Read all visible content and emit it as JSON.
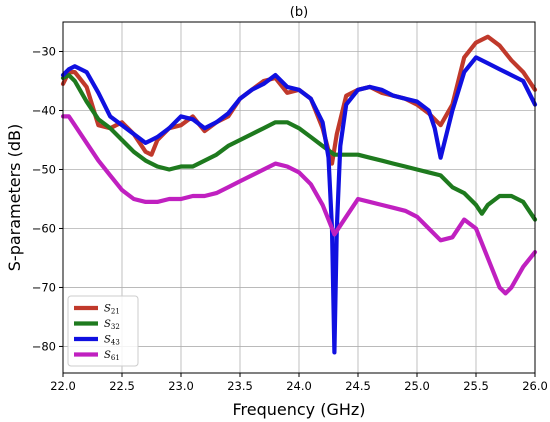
{
  "chart_data": {
    "type": "line",
    "title": "(b)",
    "xlabel": "Frequency (GHz)",
    "ylabel": "S-parameters (dB)",
    "xlim": [
      22.0,
      26.0
    ],
    "ylim": [
      -84.5,
      -25.0
    ],
    "xticks": [
      22.0,
      22.5,
      23.0,
      23.5,
      24.0,
      24.5,
      25.0,
      25.5,
      26.0
    ],
    "xtick_labels": [
      "22.0",
      "22.5",
      "23.0",
      "23.5",
      "24.0",
      "24.5",
      "25.0",
      "25.5",
      "26.0"
    ],
    "yticks": [
      -80,
      -70,
      -60,
      -50,
      -40,
      -30
    ],
    "ytick_labels": [
      "−80",
      "−70",
      "−60",
      "−50",
      "−40",
      "−30"
    ],
    "grid": true,
    "legend_position": "bottom-left",
    "series": [
      {
        "name": "S21",
        "label_main": "S",
        "label_sub": "21",
        "color": "#c0392b",
        "x": [
          22.0,
          22.05,
          22.1,
          22.2,
          22.3,
          22.4,
          22.5,
          22.6,
          22.7,
          22.75,
          22.8,
          22.9,
          23.0,
          23.1,
          23.2,
          23.3,
          23.4,
          23.5,
          23.6,
          23.7,
          23.8,
          23.9,
          24.0,
          24.1,
          24.2,
          24.28,
          24.32,
          24.4,
          24.5,
          24.6,
          24.7,
          24.8,
          24.9,
          25.0,
          25.1,
          25.2,
          25.3,
          25.4,
          25.5,
          25.6,
          25.7,
          25.8,
          25.9,
          26.0
        ],
        "y": [
          -35.5,
          -33.5,
          -33.5,
          -36.0,
          -42.5,
          -43.0,
          -42.0,
          -44.0,
          -47.0,
          -47.5,
          -45.0,
          -43.0,
          -42.5,
          -41.0,
          -43.5,
          -42.0,
          -41.0,
          -38.0,
          -36.5,
          -35.0,
          -34.5,
          -37.0,
          -36.5,
          -38.0,
          -43.0,
          -49.0,
          -44.0,
          -37.5,
          -36.5,
          -36.0,
          -37.0,
          -37.5,
          -38.0,
          -39.0,
          -40.5,
          -42.5,
          -39.0,
          -31.0,
          -28.5,
          -27.5,
          -29.0,
          -31.5,
          -33.5,
          -36.5
        ]
      },
      {
        "name": "S32",
        "label_main": "S",
        "label_sub": "32",
        "color": "#1e7a1e",
        "x": [
          22.0,
          22.05,
          22.1,
          22.2,
          22.3,
          22.4,
          22.5,
          22.6,
          22.7,
          22.8,
          22.9,
          23.0,
          23.1,
          23.2,
          23.3,
          23.4,
          23.5,
          23.6,
          23.7,
          23.8,
          23.9,
          24.0,
          24.1,
          24.2,
          24.3,
          24.4,
          24.5,
          24.6,
          24.7,
          24.8,
          24.9,
          25.0,
          25.1,
          25.2,
          25.3,
          25.4,
          25.5,
          25.55,
          25.6,
          25.7,
          25.8,
          25.9,
          26.0
        ],
        "y": [
          -34.5,
          -34.0,
          -35.0,
          -38.5,
          -41.5,
          -43.0,
          -45.0,
          -47.0,
          -48.5,
          -49.5,
          -50.0,
          -49.5,
          -49.5,
          -48.5,
          -47.5,
          -46.0,
          -45.0,
          -44.0,
          -43.0,
          -42.0,
          -42.0,
          -43.0,
          -44.5,
          -46.0,
          -47.5,
          -47.5,
          -47.5,
          -48.0,
          -48.5,
          -49.0,
          -49.5,
          -50.0,
          -50.5,
          -51.0,
          -53.0,
          -54.0,
          -56.0,
          -57.5,
          -56.0,
          -54.5,
          -54.5,
          -55.5,
          -58.5
        ]
      },
      {
        "name": "S43",
        "label_main": "S",
        "label_sub": "43",
        "color": "#1010e0",
        "x": [
          22.0,
          22.05,
          22.1,
          22.2,
          22.3,
          22.4,
          22.5,
          22.6,
          22.7,
          22.75,
          22.8,
          22.9,
          23.0,
          23.1,
          23.2,
          23.3,
          23.4,
          23.5,
          23.6,
          23.7,
          23.8,
          23.9,
          24.0,
          24.1,
          24.2,
          24.25,
          24.28,
          24.3,
          24.32,
          24.35,
          24.4,
          24.5,
          24.6,
          24.7,
          24.8,
          24.9,
          25.0,
          25.1,
          25.15,
          25.2,
          25.25,
          25.3,
          25.4,
          25.5,
          25.6,
          25.7,
          25.8,
          25.9,
          26.0
        ],
        "y": [
          -34.0,
          -33.0,
          -32.5,
          -33.5,
          -37.0,
          -41.0,
          -42.5,
          -44.0,
          -45.5,
          -45.0,
          -44.5,
          -43.0,
          -41.0,
          -41.5,
          -43.0,
          -42.0,
          -40.5,
          -38.0,
          -36.5,
          -35.5,
          -34.0,
          -36.0,
          -36.5,
          -38.0,
          -42.0,
          -48.0,
          -60.0,
          -81.0,
          -60.0,
          -46.0,
          -39.0,
          -36.5,
          -36.0,
          -36.5,
          -37.5,
          -38.0,
          -38.5,
          -40.0,
          -43.0,
          -48.0,
          -44.0,
          -40.0,
          -33.5,
          -31.0,
          -32.0,
          -33.0,
          -34.0,
          -35.0,
          -39.0
        ]
      },
      {
        "name": "S61",
        "label_main": "S",
        "label_sub": "61",
        "color": "#c020c0",
        "x": [
          22.0,
          22.05,
          22.1,
          22.2,
          22.3,
          22.4,
          22.5,
          22.6,
          22.7,
          22.8,
          22.9,
          23.0,
          23.1,
          23.2,
          23.3,
          23.4,
          23.5,
          23.6,
          23.7,
          23.8,
          23.9,
          24.0,
          24.1,
          24.2,
          24.3,
          24.4,
          24.5,
          24.6,
          24.7,
          24.8,
          24.9,
          25.0,
          25.1,
          25.2,
          25.3,
          25.4,
          25.5,
          25.6,
          25.7,
          25.75,
          25.8,
          25.9,
          26.0
        ],
        "y": [
          -41.0,
          -41.0,
          -42.5,
          -45.5,
          -48.5,
          -51.0,
          -53.5,
          -55.0,
          -55.5,
          -55.5,
          -55.0,
          -55.0,
          -54.5,
          -54.5,
          -54.0,
          -53.0,
          -52.0,
          -51.0,
          -50.0,
          -49.0,
          -49.5,
          -50.5,
          -52.5,
          -56.0,
          -61.0,
          -58.0,
          -55.0,
          -55.5,
          -56.0,
          -56.5,
          -57.0,
          -58.0,
          -60.0,
          -62.0,
          -61.5,
          -58.5,
          -60.0,
          -65.0,
          -70.0,
          -71.0,
          -70.0,
          -66.5,
          -64.0
        ]
      }
    ]
  }
}
